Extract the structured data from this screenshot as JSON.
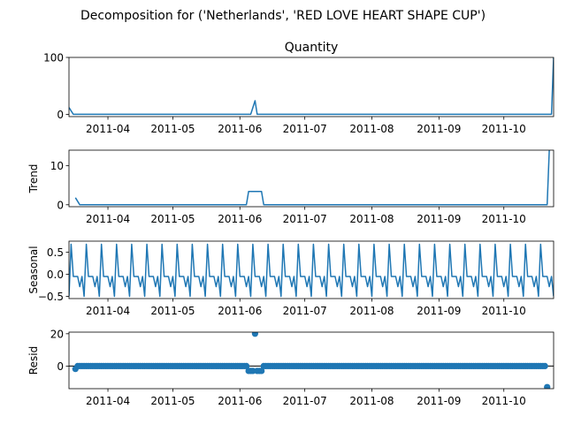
{
  "figure_title": "Decomposition for ('Netherlands', 'RED LOVE HEART SHAPE CUP')",
  "colors": {
    "line": "#1f77b4",
    "axis": "#000000",
    "background": "#ffffff"
  },
  "x_tick_labels": [
    "2011-04",
    "2011-05",
    "2011-06",
    "2011-07",
    "2011-08",
    "2011-09",
    "2011-10"
  ],
  "chart_data": [
    {
      "type": "line",
      "title": "Quantity",
      "ylabel": "",
      "x_range": [
        "2011-03-14",
        "2011-10-24"
      ],
      "y_range": [
        -4,
        100
      ],
      "y_ticks": [
        0,
        100
      ],
      "x_ticks": [
        "2011-04-01",
        "2011-05-01",
        "2011-06-01",
        "2011-07-01",
        "2011-08-01",
        "2011-09-01",
        "2011-10-01"
      ],
      "series": [
        {
          "points": [
            [
              "2011-03-14",
              12
            ],
            [
              "2011-03-16",
              0
            ],
            [
              "2011-06-06",
              0
            ],
            [
              "2011-06-08",
              24
            ],
            [
              "2011-06-09",
              0
            ],
            [
              "2011-10-23",
              0
            ],
            [
              "2011-10-24",
              100
            ]
          ]
        }
      ]
    },
    {
      "type": "line",
      "title": "",
      "ylabel": "Trend",
      "x_range": [
        "2011-03-14",
        "2011-10-24"
      ],
      "y_range": [
        -0.5,
        14
      ],
      "y_ticks": [
        0,
        10
      ],
      "x_ticks": [
        "2011-04-01",
        "2011-05-01",
        "2011-06-01",
        "2011-07-01",
        "2011-08-01",
        "2011-09-01",
        "2011-10-01"
      ],
      "series": [
        {
          "points": [
            [
              "2011-03-17",
              1.8
            ],
            [
              "2011-03-19",
              0
            ],
            [
              "2011-06-04",
              0
            ],
            [
              "2011-06-05",
              3.4
            ],
            [
              "2011-06-11",
              3.4
            ],
            [
              "2011-06-12",
              0
            ],
            [
              "2011-10-21",
              0
            ],
            [
              "2011-10-22",
              14
            ]
          ]
        }
      ]
    },
    {
      "type": "line",
      "title": "",
      "ylabel": "Seasonal",
      "x_range": [
        "2011-03-14",
        "2011-10-24"
      ],
      "y_range": [
        -0.55,
        0.75
      ],
      "y_ticks": [
        -0.5,
        0.0,
        0.5
      ],
      "y_tick_labels": [
        "−0.5",
        "0.0",
        "0.5"
      ],
      "x_ticks": [
        "2011-04-01",
        "2011-05-01",
        "2011-06-01",
        "2011-07-01",
        "2011-08-01",
        "2011-09-01",
        "2011-10-01"
      ],
      "weekly_pattern": [
        -0.5,
        0.68,
        -0.05,
        -0.05,
        -0.05,
        -0.28,
        -0.05
      ],
      "start_date": "2011-03-14",
      "end_date": "2011-10-24"
    },
    {
      "type": "scatter",
      "title": "",
      "ylabel": "Resid",
      "x_range": [
        "2011-03-14",
        "2011-10-24"
      ],
      "y_range": [
        -14,
        21
      ],
      "y_ticks": [
        0,
        20
      ],
      "x_ticks": [
        "2011-04-01",
        "2011-05-01",
        "2011-06-01",
        "2011-07-01",
        "2011-08-01",
        "2011-09-01",
        "2011-10-01"
      ],
      "baseline": 0,
      "start_date": "2011-03-17",
      "end_date": "2011-10-21",
      "default_value": 0,
      "special_points": [
        [
          "2011-03-17",
          -1.8
        ],
        [
          "2011-06-05",
          -3
        ],
        [
          "2011-06-06",
          -3
        ],
        [
          "2011-06-07",
          -3
        ],
        [
          "2011-06-08",
          20
        ],
        [
          "2011-06-09",
          -3
        ],
        [
          "2011-06-10",
          -3
        ],
        [
          "2011-06-11",
          -3
        ],
        [
          "2011-10-21",
          -13
        ]
      ]
    }
  ]
}
